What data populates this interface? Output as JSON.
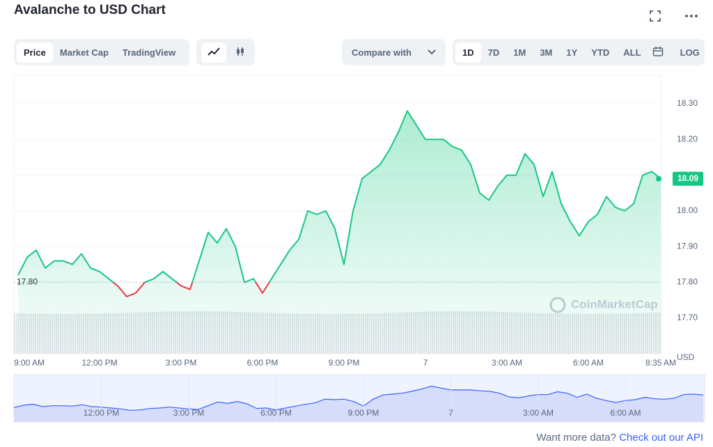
{
  "chart_data": {
    "type": "line",
    "title": "Avalanche to USD Chart",
    "categories": [
      "9:00 AM",
      null,
      null,
      null,
      null,
      null,
      null,
      null,
      null,
      "12:00 PM",
      null,
      null,
      null,
      null,
      null,
      null,
      null,
      null,
      "3:00 PM",
      null,
      null,
      null,
      null,
      null,
      null,
      null,
      null,
      "6:00 PM",
      null,
      null,
      null,
      null,
      null,
      null,
      null,
      null,
      "9:00 PM",
      null,
      null,
      null,
      null,
      null,
      null,
      null,
      null,
      "7",
      null,
      null,
      null,
      null,
      null,
      null,
      null,
      null,
      "3:00 AM",
      null,
      null,
      null,
      null,
      null,
      null,
      null,
      null,
      "6:00 AM",
      null,
      null,
      null,
      null,
      null,
      null,
      null,
      "8:35 AM"
    ],
    "series": [
      {
        "name": "Price",
        "color": "#16c784",
        "down_color": "#ea3943",
        "values": [
          17.82,
          17.87,
          17.89,
          17.84,
          17.86,
          17.86,
          17.85,
          17.88,
          17.84,
          17.83,
          17.81,
          17.79,
          17.76,
          17.77,
          17.8,
          17.81,
          17.83,
          17.81,
          17.79,
          17.78,
          17.86,
          17.94,
          17.91,
          17.95,
          17.9,
          17.8,
          17.81,
          17.77,
          17.81,
          17.85,
          17.89,
          17.92,
          18.0,
          17.99,
          18.0,
          17.95,
          17.85,
          18.0,
          18.09,
          18.11,
          18.13,
          18.17,
          18.22,
          18.28,
          18.24,
          18.2,
          18.2,
          18.2,
          18.18,
          18.17,
          18.13,
          18.05,
          18.03,
          18.07,
          18.1,
          18.1,
          18.16,
          18.13,
          18.04,
          18.11,
          18.02,
          17.97,
          17.93,
          17.97,
          17.99,
          18.04,
          18.01,
          18.0,
          18.02,
          18.1,
          18.11,
          18.09
        ]
      }
    ],
    "baseline": {
      "value": 17.8,
      "label": "17.80"
    },
    "ylim": [
      17.6,
      18.38
    ],
    "yticks": [
      {
        "value": 17.7,
        "label": "17.70"
      },
      {
        "value": 17.8,
        "label": "17.80"
      },
      {
        "value": 17.9,
        "label": "17.90"
      },
      {
        "value": 18,
        "label": "18.00"
      },
      {
        "value": 18.1,
        "label": "18.10"
      },
      {
        "value": 18.2,
        "label": "18.20"
      },
      {
        "value": 18.3,
        "label": "18.30"
      }
    ],
    "y_label": "USD",
    "grid": true,
    "watermark": "CoinMarketCap"
  },
  "tabs": [
    "Price",
    "Market Cap",
    "TradingView"
  ],
  "compare": "Compare with",
  "ranges": [
    "1D",
    "7D",
    "1M",
    "3M",
    "1Y",
    "YTD",
    "ALL"
  ],
  "log": "LOG",
  "footer": {
    "text": "Want more data?",
    "link": "Check out our API"
  }
}
